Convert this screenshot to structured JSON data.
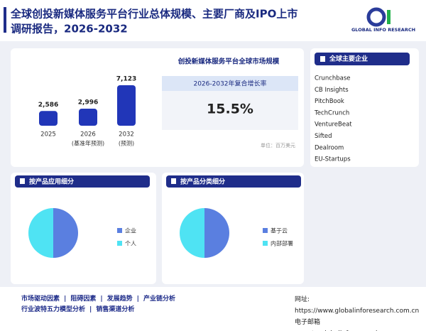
{
  "header": {
    "title_line1": "全球创投新媒体服务平台行业总体规模、主要厂商及IPO上市",
    "title_line2": "调研报告，2026-2032",
    "logo_text": "GLOBAL INFO RESEARCH"
  },
  "market": {
    "title": "创投新媒体服务平台全球市场规模",
    "cagr_label": "2026-2032年复合增长率",
    "cagr": "15.5%",
    "unit": "单位：百万美元"
  },
  "chart_data": [
    {
      "type": "bar",
      "categories": [
        "2025",
        "2026",
        "2032"
      ],
      "category_notes": [
        null,
        "(基准年预测)",
        "(预测)"
      ],
      "values": [
        2586,
        2996,
        7123
      ],
      "value_labels": [
        "2,586",
        "2,996",
        "7,123"
      ],
      "color": "#2136b8"
    },
    {
      "type": "pie",
      "title": "按产品应用细分",
      "categories": [
        "企业",
        "个人"
      ],
      "values": [
        50,
        50
      ],
      "colors": [
        "#5a7fe0",
        "#4fe3f3"
      ]
    },
    {
      "type": "pie",
      "title": "按产品分类细分",
      "categories": [
        "基于云",
        "内部部署"
      ],
      "values": [
        50,
        50
      ],
      "colors": [
        "#5a7fe0",
        "#4fe3f3"
      ]
    }
  ],
  "companies": {
    "title": "全球主要企业",
    "items": [
      "Crunchbase",
      "CB Insights",
      "PitchBook",
      "TechCrunch",
      "VentureBeat",
      "Sifted",
      "Dealroom",
      "EU-Startups"
    ]
  },
  "footer": {
    "links": [
      [
        "市场驱动因素",
        "阻碍因素",
        "发展趋势",
        "产业链分析"
      ],
      [
        "行业波特五力模型分析",
        "销售渠道分析"
      ]
    ],
    "website": "网址: https://www.globalinforesearch.com.cn",
    "email": "电子邮箱 report@globalinforesearch.com.cn"
  }
}
